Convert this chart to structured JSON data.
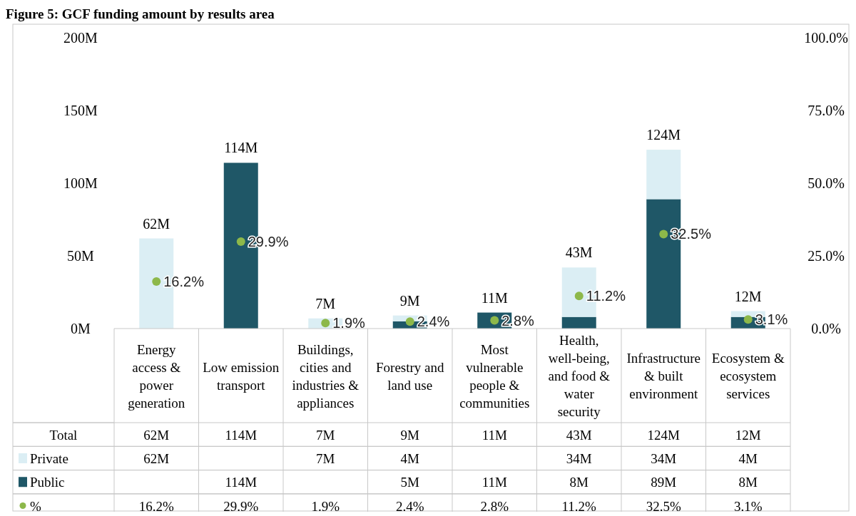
{
  "chart_data": {
    "type": "bar",
    "title": "Figure 5: GCF funding amount by results area",
    "categories": [
      "Energy access & power generation",
      "Low emission transport",
      "Buildings, cities and industries & appliances",
      "Forestry and land use",
      "Most vulnerable people & communities",
      "Health, well-being, and food & water security",
      "Infrastructure & built environment",
      "Ecosystem & ecosystem services"
    ],
    "stacked": true,
    "series": [
      {
        "name": "Public",
        "color": "#1f5767",
        "values": [
          null,
          114,
          null,
          5,
          11,
          8,
          89,
          8
        ],
        "value_labels": [
          null,
          "114M",
          null,
          "5M",
          "11M",
          "8M",
          "89M",
          "8M"
        ]
      },
      {
        "name": "Private",
        "color": "#dbeef4",
        "values": [
          62,
          null,
          7,
          4,
          null,
          34,
          34,
          4
        ],
        "value_labels": [
          "62M",
          null,
          "7M",
          "4M",
          null,
          "34M",
          "34M",
          "4M"
        ]
      },
      {
        "name": "%",
        "type": "scatter",
        "axis": "y2",
        "color": "#8db84a",
        "marker": "circle",
        "values": [
          16.2,
          29.9,
          1.9,
          2.4,
          2.8,
          11.2,
          32.5,
          3.1
        ],
        "value_labels": [
          "16.2%",
          "29.9%",
          "1.9%",
          "2.4%",
          "2.8%",
          "11.2%",
          "32.5%",
          "3.1%"
        ]
      }
    ],
    "totals": [
      "62M",
      "114M",
      "7M",
      "9M",
      "11M",
      "43M",
      "124M",
      "12M"
    ],
    "annotations": [
      "Total"
    ],
    "ylim": [
      0,
      200
    ],
    "yticks": [
      {
        "value": 0,
        "label": "0M"
      },
      {
        "value": 50,
        "label": "50M"
      },
      {
        "value": 100,
        "label": "100M"
      },
      {
        "value": 150,
        "label": "150M"
      },
      {
        "value": 200,
        "label": "200M"
      }
    ],
    "y2lim": [
      0,
      100
    ],
    "y2ticks": [
      {
        "value": 0,
        "label": "0.0%"
      },
      {
        "value": 25,
        "label": "25.0%"
      },
      {
        "value": 50,
        "label": "50.0%"
      },
      {
        "value": 75,
        "label": "75.0%"
      },
      {
        "value": 100,
        "label": "100.0%"
      }
    ],
    "grid": false,
    "legend": "bottom",
    "data_labels": true
  }
}
